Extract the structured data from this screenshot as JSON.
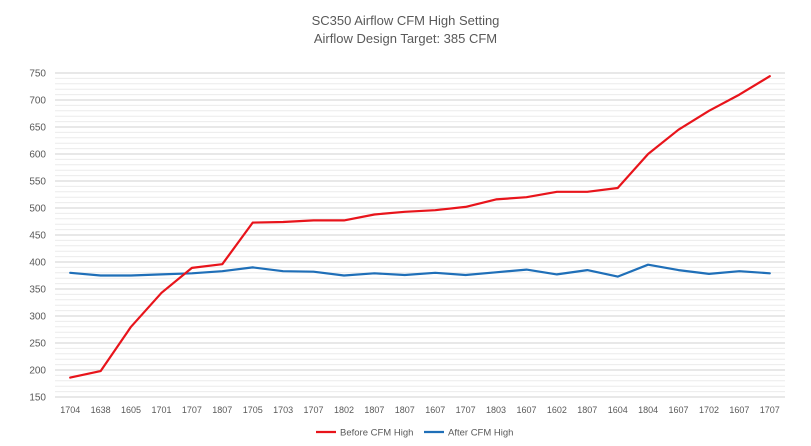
{
  "chart_data": {
    "type": "line",
    "title": "SC350 Airflow CFM High Setting",
    "subtitle": "Airflow Design Target: 385 CFM",
    "xlabel": "",
    "ylabel": "",
    "ylim": [
      150,
      750
    ],
    "yticks": [
      150,
      200,
      250,
      300,
      350,
      400,
      450,
      500,
      550,
      600,
      650,
      700,
      750
    ],
    "minor_grid_step": 10,
    "grid": true,
    "legend_position": "bottom",
    "categories": [
      "1704",
      "1638",
      "1605",
      "1701",
      "1707",
      "1807",
      "1705",
      "1703",
      "1707",
      "1802",
      "1807",
      "1807",
      "1607",
      "1707",
      "1803",
      "1607",
      "1602",
      "1807",
      "1604",
      "1804",
      "1607",
      "1702",
      "1607",
      "1707"
    ],
    "series": [
      {
        "name": "Before CFM High",
        "color": "#e8141b",
        "values": [
          186,
          198,
          280,
          343,
          389,
          396,
          473,
          474,
          477,
          477,
          488,
          493,
          496,
          502,
          516,
          520,
          530,
          530,
          537,
          600,
          645,
          680,
          710,
          744
        ]
      },
      {
        "name": "After CFM High",
        "color": "#1f6fb8",
        "values": [
          380,
          375,
          375,
          377,
          379,
          383,
          390,
          383,
          382,
          375,
          379,
          376,
          380,
          376,
          381,
          386,
          377,
          385,
          373,
          395,
          385,
          378,
          383,
          379
        ]
      }
    ]
  }
}
